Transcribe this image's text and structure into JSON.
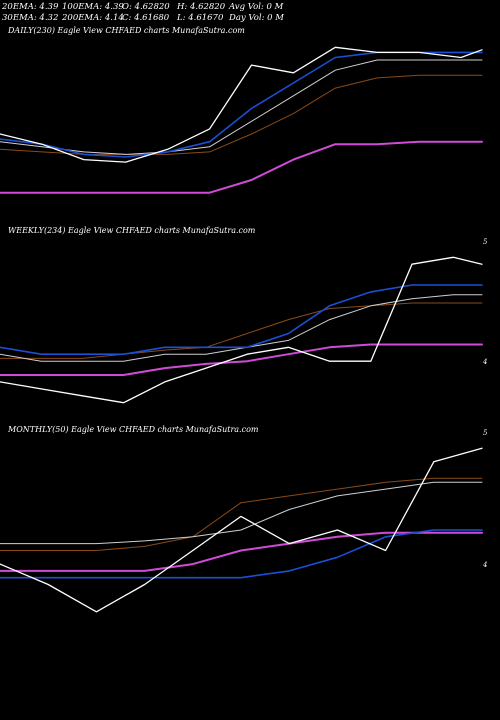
{
  "header": {
    "row1": [
      "20EMA: 4.39",
      "100EMA: 4.39",
      "O: 4.62820",
      "H: 4.62820",
      "Avg Vol: 0  M"
    ],
    "row2": [
      "30EMA: 4.32",
      "200EMA: 4.14",
      "C: 4.61680",
      "L: 4.61670",
      "Day Vol: 0  M"
    ]
  },
  "colors": {
    "background": "#000000",
    "price": "#ffffff",
    "ema_blue": "#1a4fd6",
    "ema_orange": "#8b4a16",
    "ema_gray": "#cfcfcf",
    "ema_magenta": "#d04bd6"
  },
  "chart_data": [
    {
      "type": "line",
      "title": "DAILY(230) Eagle  View  CHFAED charts MunafaSutra.com",
      "y_tick_labels": [],
      "x": [
        0,
        20,
        40,
        60,
        80,
        100,
        120,
        140,
        160,
        180,
        200,
        220,
        230
      ],
      "series": [
        {
          "key": "price",
          "color": "#ffffff",
          "width": 1.3,
          "values": [
            4.28,
            4.24,
            4.18,
            4.17,
            4.22,
            4.3,
            4.55,
            4.52,
            4.62,
            4.6,
            4.6,
            4.58,
            4.61
          ]
        },
        {
          "key": "ema_blue",
          "color": "#1a4fd6",
          "width": 1.6,
          "values": [
            4.26,
            4.24,
            4.2,
            4.19,
            4.21,
            4.25,
            4.38,
            4.48,
            4.58,
            4.6,
            4.6,
            4.6,
            4.6
          ]
        },
        {
          "key": "ema_gray",
          "color": "#cfcfcf",
          "width": 1.0,
          "values": [
            4.25,
            4.23,
            4.21,
            4.2,
            4.21,
            4.23,
            4.33,
            4.43,
            4.53,
            4.57,
            4.57,
            4.57,
            4.57
          ]
        },
        {
          "key": "ema_orange",
          "color": "#8b4a16",
          "width": 1.0,
          "values": [
            4.22,
            4.21,
            4.2,
            4.2,
            4.2,
            4.21,
            4.28,
            4.36,
            4.46,
            4.5,
            4.51,
            4.51,
            4.51
          ]
        },
        {
          "key": "ema_magenta",
          "color": "#d04bd6",
          "width": 2.0,
          "values": [
            4.05,
            4.05,
            4.05,
            4.05,
            4.05,
            4.05,
            4.1,
            4.18,
            4.24,
            4.24,
            4.25,
            4.25,
            4.25
          ]
        }
      ]
    },
    {
      "type": "line",
      "title": "WEEKLY(234) Eagle  View  CHFAED charts MunafaSutra.com",
      "y_tick_labels": [
        "5",
        "4"
      ],
      "x": [
        0,
        20,
        40,
        60,
        80,
        100,
        120,
        140,
        160,
        180,
        200,
        220,
        234
      ],
      "series": [
        {
          "key": "price",
          "color": "#ffffff",
          "width": 1.3,
          "values": [
            3.85,
            3.8,
            3.75,
            3.7,
            3.85,
            3.95,
            4.05,
            4.1,
            4.0,
            4.0,
            4.7,
            4.75,
            4.7
          ]
        },
        {
          "key": "ema_blue",
          "color": "#1a4fd6",
          "width": 1.6,
          "values": [
            4.1,
            4.05,
            4.05,
            4.05,
            4.1,
            4.1,
            4.1,
            4.2,
            4.4,
            4.5,
            4.55,
            4.55,
            4.55
          ]
        },
        {
          "key": "ema_gray",
          "color": "#cfcfcf",
          "width": 1.0,
          "values": [
            4.05,
            4.0,
            4.0,
            4.0,
            4.05,
            4.05,
            4.1,
            4.15,
            4.3,
            4.4,
            4.45,
            4.48,
            4.48
          ]
        },
        {
          "key": "ema_orange",
          "color": "#8b4a16",
          "width": 1.0,
          "values": [
            4.02,
            4.02,
            4.02,
            4.05,
            4.08,
            4.1,
            4.2,
            4.3,
            4.38,
            4.4,
            4.42,
            4.42,
            4.42
          ]
        },
        {
          "key": "ema_magenta",
          "color": "#d04bd6",
          "width": 2.0,
          "values": [
            3.9,
            3.9,
            3.9,
            3.9,
            3.95,
            3.98,
            4.0,
            4.05,
            4.1,
            4.12,
            4.12,
            4.12,
            4.12
          ]
        }
      ]
    },
    {
      "type": "line",
      "title": "MONTHLY(50) Eagle  View  CHFAED charts MunafaSutra.com",
      "y_tick_labels": [
        "5",
        "4"
      ],
      "x": [
        0,
        5,
        10,
        15,
        20,
        25,
        30,
        35,
        40,
        45,
        50
      ],
      "series": [
        {
          "key": "price",
          "color": "#ffffff",
          "width": 1.3,
          "values": [
            3.95,
            3.8,
            3.6,
            3.8,
            4.05,
            4.3,
            4.1,
            4.2,
            4.05,
            4.7,
            4.8
          ]
        },
        {
          "key": "ema_blue",
          "color": "#1a4fd6",
          "width": 1.6,
          "values": [
            3.85,
            3.85,
            3.85,
            3.85,
            3.85,
            3.85,
            3.9,
            4.0,
            4.15,
            4.2,
            4.2
          ]
        },
        {
          "key": "ema_gray",
          "color": "#cfcfcf",
          "width": 1.0,
          "values": [
            4.1,
            4.1,
            4.1,
            4.12,
            4.15,
            4.2,
            4.35,
            4.45,
            4.5,
            4.55,
            4.55
          ]
        },
        {
          "key": "ema_orange",
          "color": "#8b4a16",
          "width": 1.0,
          "values": [
            4.05,
            4.05,
            4.05,
            4.08,
            4.15,
            4.4,
            4.45,
            4.5,
            4.55,
            4.58,
            4.58
          ]
        },
        {
          "key": "ema_magenta",
          "color": "#d04bd6",
          "width": 2.0,
          "values": [
            3.9,
            3.9,
            3.9,
            3.9,
            3.95,
            4.05,
            4.1,
            4.15,
            4.18,
            4.18,
            4.18
          ]
        }
      ]
    }
  ]
}
